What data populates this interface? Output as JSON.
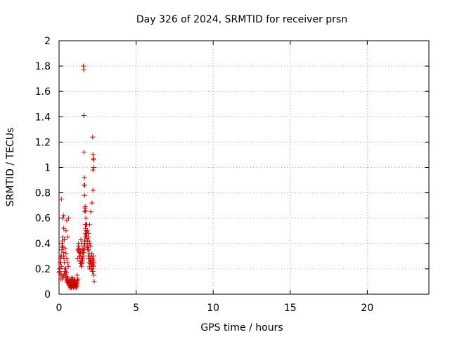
{
  "chart_data": {
    "type": "scatter",
    "title": "Day 326 of 2024, SRMTID for receiver prsn",
    "xlabel": "GPS time / hours",
    "ylabel": "SRMTID / TECUs",
    "xlim": [
      0,
      24
    ],
    "ylim": [
      0,
      2
    ],
    "xticks": [
      0,
      5,
      10,
      15,
      20
    ],
    "xtick_labels": [
      "0",
      "5",
      "10",
      "15",
      "20"
    ],
    "yticks": [
      0,
      0.2,
      0.4,
      0.6,
      0.8,
      1,
      1.2,
      1.4,
      1.6,
      1.8,
      2
    ],
    "ytick_labels": [
      "0",
      "0.2",
      "0.4",
      "0.6",
      "0.8",
      "1",
      "1.2",
      "1.4",
      "1.6",
      "1.8",
      "2"
    ],
    "grid": true,
    "marker": "+",
    "color": "#cc0000",
    "series": [
      {
        "name": "SRMTID",
        "x": [
          0.0,
          0.02,
          0.05,
          0.07,
          0.1,
          0.12,
          0.15,
          0.18,
          0.2,
          0.22,
          0.25,
          0.27,
          0.3,
          0.32,
          0.35,
          0.37,
          0.4,
          0.42,
          0.45,
          0.47,
          0.5,
          0.52,
          0.55,
          0.57,
          0.6,
          0.62,
          0.65,
          0.67,
          0.7,
          0.72,
          0.75,
          0.77,
          0.8,
          0.82,
          0.85,
          0.87,
          0.9,
          0.92,
          0.95,
          0.97,
          1.0,
          1.02,
          1.05,
          1.07,
          1.1,
          1.12,
          1.15,
          1.17,
          1.2,
          1.22,
          1.25,
          1.27,
          1.3,
          1.32,
          1.35,
          1.37,
          1.4,
          1.42,
          1.45,
          1.47,
          1.5,
          1.52,
          1.55,
          1.57,
          1.6,
          1.62,
          1.65,
          1.67,
          1.7,
          1.72,
          1.75,
          1.77,
          1.8,
          1.82,
          1.85,
          1.87,
          1.9,
          1.92,
          1.95,
          1.97,
          2.0,
          2.02,
          2.05,
          2.07,
          2.1,
          2.12,
          2.15,
          2.17,
          2.2,
          2.22,
          2.25,
          2.27,
          0.05,
          0.1,
          0.15,
          0.2,
          0.25,
          0.3,
          0.35,
          0.4,
          0.45,
          0.5,
          0.55,
          0.6,
          0.18,
          0.22,
          0.28,
          0.33,
          0.38,
          0.43,
          0.48,
          0.53,
          0.58,
          0.63,
          0.68,
          0.73,
          0.78,
          0.83,
          0.88,
          0.93,
          0.98,
          1.03,
          1.08,
          1.13,
          1.18,
          1.23,
          0.7,
          0.75,
          0.8,
          0.85,
          0.9,
          0.95,
          1.0,
          1.05,
          1.1,
          1.15,
          1.2,
          1.25,
          1.28,
          1.32,
          1.36,
          1.4,
          1.44,
          1.48,
          1.52,
          1.56,
          1.6,
          1.64,
          1.68,
          1.72,
          1.76,
          1.8,
          1.84,
          1.88,
          1.92,
          1.96,
          2.0,
          2.04,
          2.08,
          2.12,
          2.16,
          2.2,
          2.24,
          1.58,
          1.6,
          1.61,
          1.62,
          1.64,
          1.66,
          1.68,
          1.7,
          1.72,
          1.74,
          2.18,
          2.2,
          2.22,
          2.24,
          2.26,
          1.62,
          1.65,
          1.68,
          1.8,
          1.84,
          1.9,
          1.95,
          2.0,
          2.05,
          2.1,
          2.15,
          2.2,
          2.25,
          2.28,
          1.42,
          1.46,
          1.5,
          1.54,
          1.58,
          1.62,
          1.66,
          1.7,
          1.74,
          1.78,
          0.5,
          0.3,
          0.45,
          0.55,
          0.62,
          0.25,
          0.15,
          0.08,
          0.12,
          2.2,
          2.14,
          2.06,
          1.98,
          1.9,
          2.2
        ],
        "y": [
          0.17,
          0.2,
          0.18,
          0.25,
          0.28,
          0.3,
          0.22,
          0.35,
          0.4,
          0.42,
          0.37,
          0.33,
          0.3,
          0.28,
          0.25,
          0.2,
          0.18,
          0.15,
          0.13,
          0.12,
          0.1,
          0.11,
          0.09,
          0.12,
          0.1,
          0.08,
          0.07,
          0.09,
          0.11,
          0.08,
          0.06,
          0.07,
          0.09,
          0.1,
          0.08,
          0.07,
          0.06,
          0.08,
          0.09,
          0.1,
          0.12,
          0.11,
          0.09,
          0.08,
          0.07,
          0.06,
          0.1,
          0.15,
          0.28,
          0.35,
          0.38,
          0.4,
          0.36,
          0.33,
          0.3,
          0.32,
          0.34,
          0.3,
          0.28,
          0.26,
          0.25,
          0.28,
          0.3,
          0.33,
          0.35,
          0.38,
          0.4,
          0.42,
          0.45,
          0.48,
          0.5,
          0.47,
          0.44,
          0.4,
          0.37,
          0.35,
          0.3,
          0.28,
          0.25,
          0.22,
          0.2,
          0.24,
          0.27,
          0.3,
          0.25,
          0.22,
          0.2,
          0.18,
          0.23,
          0.27,
          0.3,
          0.25,
          0.2,
          0.25,
          0.3,
          0.38,
          0.45,
          0.52,
          0.43,
          0.36,
          0.32,
          0.28,
          0.25,
          0.22,
          0.15,
          0.12,
          0.14,
          0.16,
          0.18,
          0.2,
          0.17,
          0.14,
          0.12,
          0.1,
          0.09,
          0.1,
          0.11,
          0.13,
          0.12,
          0.1,
          0.09,
          0.08,
          0.07,
          0.09,
          0.11,
          0.12,
          0.05,
          0.06,
          0.05,
          0.07,
          0.06,
          0.05,
          0.06,
          0.07,
          0.05,
          0.06,
          0.08,
          0.34,
          0.36,
          0.3,
          0.26,
          0.24,
          0.22,
          0.24,
          0.27,
          0.3,
          0.33,
          0.36,
          0.4,
          0.52,
          0.55,
          0.48,
          0.42,
          0.38,
          0.35,
          0.32,
          0.28,
          0.26,
          0.3,
          0.32,
          0.28,
          0.25,
          0.22,
          1.8,
          1.77,
          1.41,
          1.12,
          0.92,
          0.86,
          0.68,
          0.69,
          0.66,
          0.6,
          1.24,
          1.1,
          1.06,
          1.07,
          1.0,
          0.86,
          0.78,
          0.65,
          0.55,
          0.5,
          0.45,
          0.42,
          0.4,
          0.38,
          0.2,
          0.23,
          0.18,
          0.15,
          0.1,
          0.43,
          0.4,
          0.36,
          0.33,
          0.35,
          0.38,
          0.42,
          0.55,
          0.5,
          0.46,
          0.58,
          0.62,
          0.5,
          0.45,
          0.6,
          0.6,
          0.75,
          0.16,
          0.12,
          0.82,
          0.72,
          0.65,
          0.55,
          0.48,
          0.98
        ],
        "color": "#cc0000"
      }
    ]
  }
}
